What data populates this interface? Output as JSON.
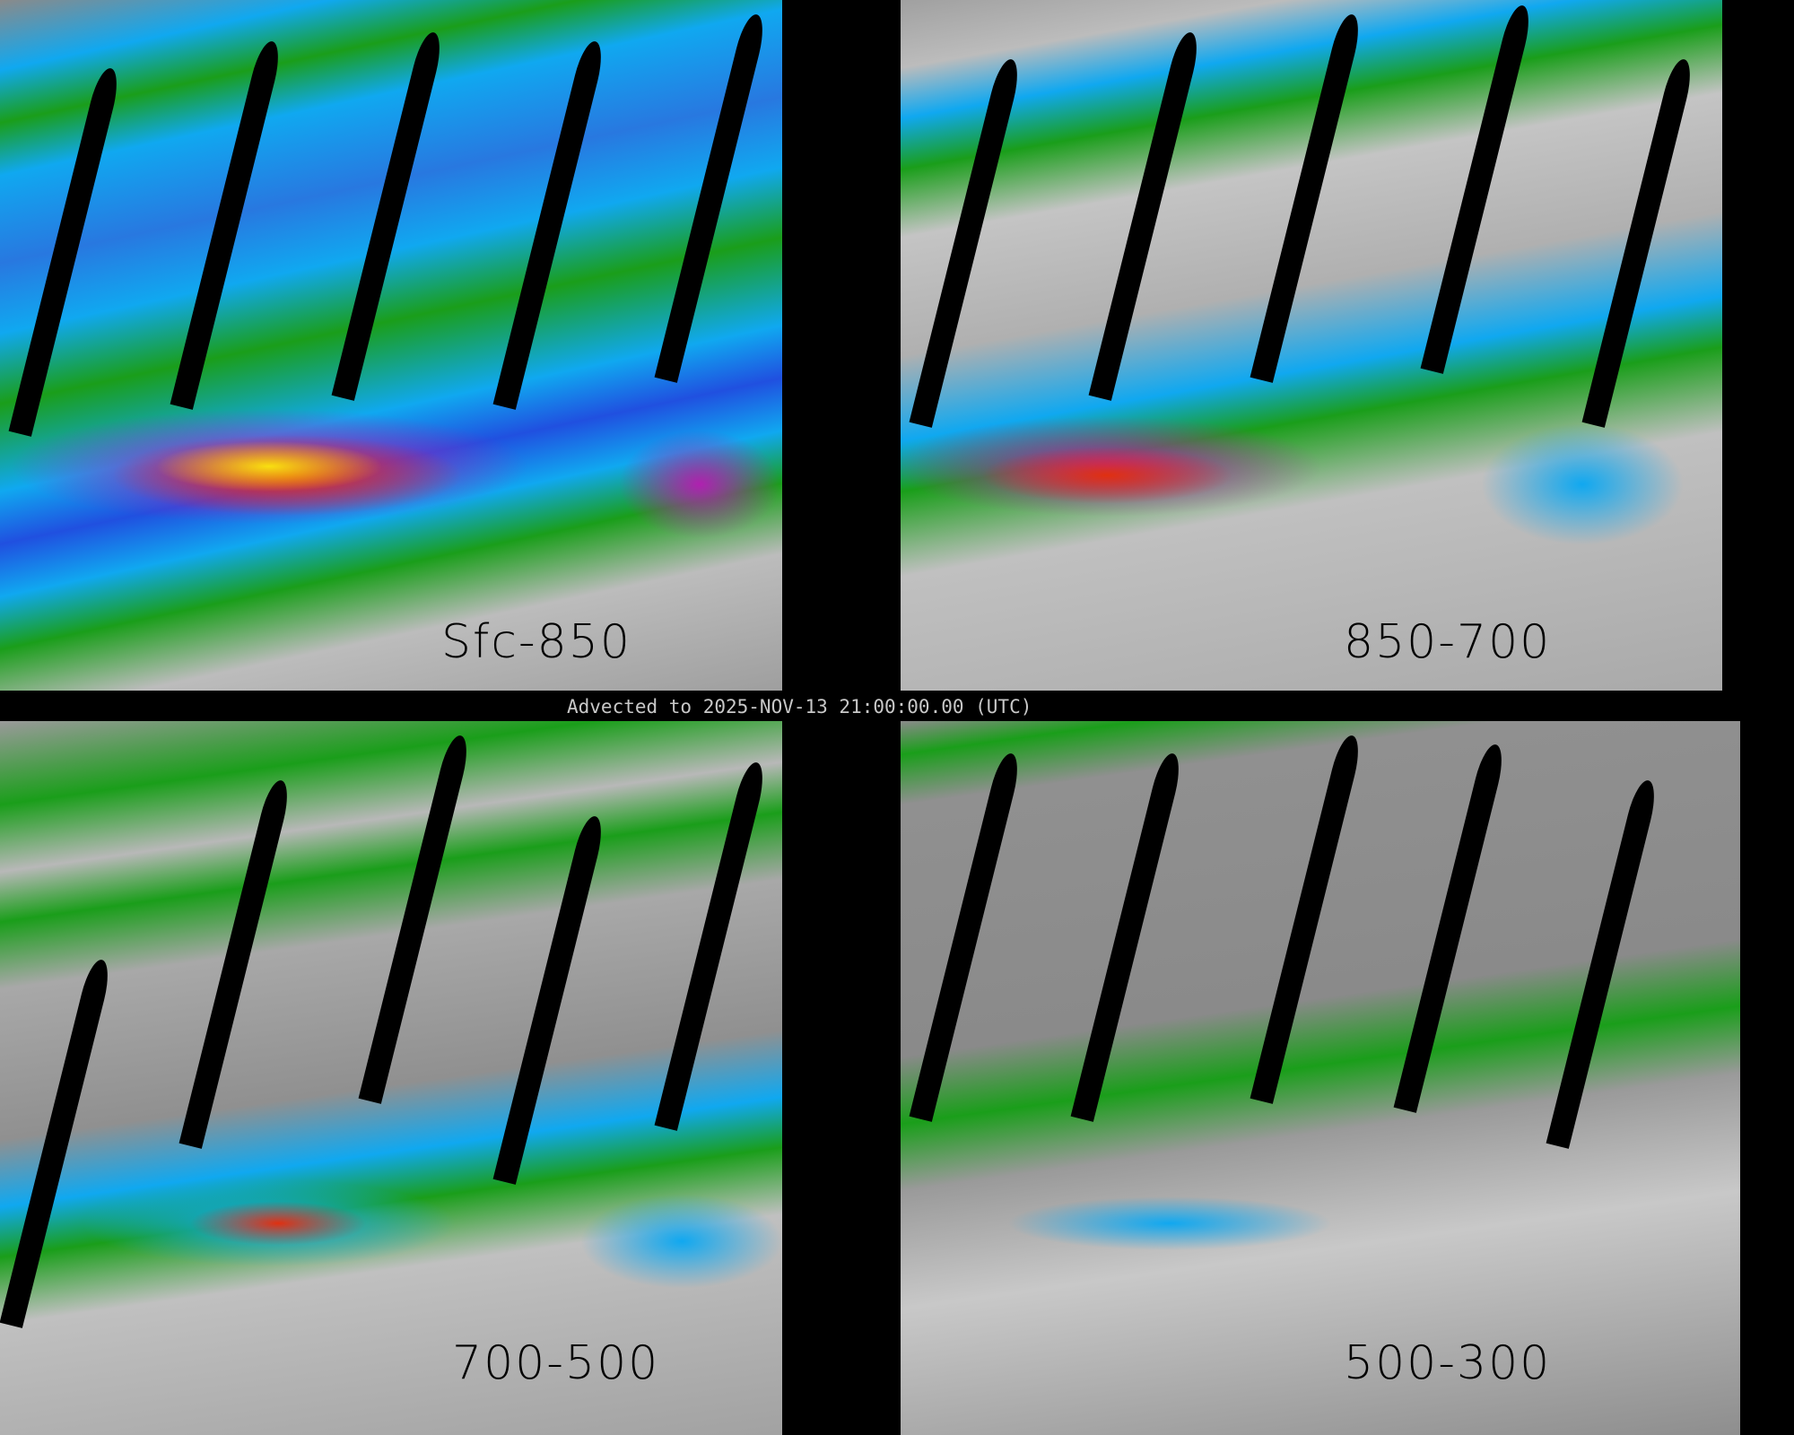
{
  "banner": {
    "text": "Advected to 2025-NOV-13 21:00:00.00 (UTC)"
  },
  "panels": [
    {
      "label": "Sfc-850"
    },
    {
      "label": "850-700"
    },
    {
      "label": "700-500"
    },
    {
      "label": "500-300"
    }
  ],
  "colors": {
    "low": "#9a9a9a",
    "high": "#f0f0f0",
    "green": "#1a9e1a",
    "cyan": "#10a8f0",
    "blue": "#2050e0",
    "magenta": "#b020b0",
    "red": "#e03010",
    "yellow": "#f8e010",
    "nodata": "#000000"
  }
}
